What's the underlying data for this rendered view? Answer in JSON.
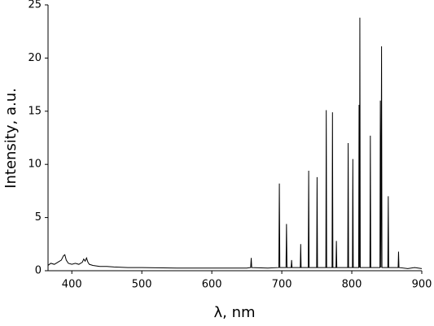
{
  "chart_data": {
    "type": "line",
    "x_label": "λ, nm",
    "y_label": "Intensity, a.u.",
    "color": "#000000",
    "xlim": [
      366,
      900
    ],
    "ylim": [
      0,
      25
    ],
    "xticks": [
      400,
      500,
      600,
      700,
      800,
      900
    ],
    "yticks": [
      0,
      5,
      10,
      15,
      20,
      25
    ],
    "x": [
      366,
      370,
      375,
      380,
      385,
      388,
      390,
      392,
      395,
      400,
      405,
      410,
      415,
      417,
      419,
      421,
      423,
      425,
      430,
      440,
      450,
      460,
      480,
      500,
      550,
      600,
      650,
      655.5,
      656.3,
      657,
      680,
      695.8,
      696.5,
      697.2,
      706,
      706.7,
      707.4,
      713.4,
      714,
      714.6,
      726.4,
      727,
      727.6,
      737.8,
      738.4,
      739,
      749.8,
      750.4,
      751,
      762.9,
      763.5,
      764.1,
      771.8,
      772.4,
      773,
      777.4,
      778,
      778.6,
      794.2,
      794.8,
      795.4,
      800.9,
      801.5,
      802.1,
      809.8,
      810.4,
      811,
      811.5,
      812.1,
      825.9,
      826.5,
      827.1,
      840.2,
      840.8,
      841.6,
      842.5,
      843.1,
      851.5,
      852.1,
      852.7,
      866.2,
      866.8,
      867.4,
      880,
      890,
      900
    ],
    "values": [
      0.5,
      0.7,
      0.6,
      0.8,
      1.0,
      1.4,
      1.5,
      1.0,
      0.7,
      0.6,
      0.7,
      0.6,
      0.8,
      1.1,
      0.9,
      1.2,
      0.8,
      0.6,
      0.5,
      0.4,
      0.4,
      0.35,
      0.3,
      0.3,
      0.25,
      0.25,
      0.25,
      0.3,
      1.2,
      0.3,
      0.25,
      0.3,
      8.2,
      0.3,
      0.3,
      4.4,
      0.3,
      0.3,
      1.0,
      0.3,
      0.3,
      2.5,
      0.3,
      0.3,
      9.4,
      0.3,
      0.3,
      8.8,
      0.3,
      0.3,
      15.1,
      0.3,
      0.3,
      14.9,
      0.3,
      0.3,
      2.8,
      0.3,
      0.3,
      12.0,
      0.3,
      0.3,
      10.5,
      0.3,
      0.3,
      15.6,
      0.3,
      23.8,
      0.3,
      0.3,
      12.7,
      0.3,
      0.3,
      16.0,
      0.3,
      21.1,
      0.3,
      0.3,
      7.0,
      0.3,
      0.3,
      1.8,
      0.3,
      0.2,
      0.3,
      0.2
    ]
  }
}
